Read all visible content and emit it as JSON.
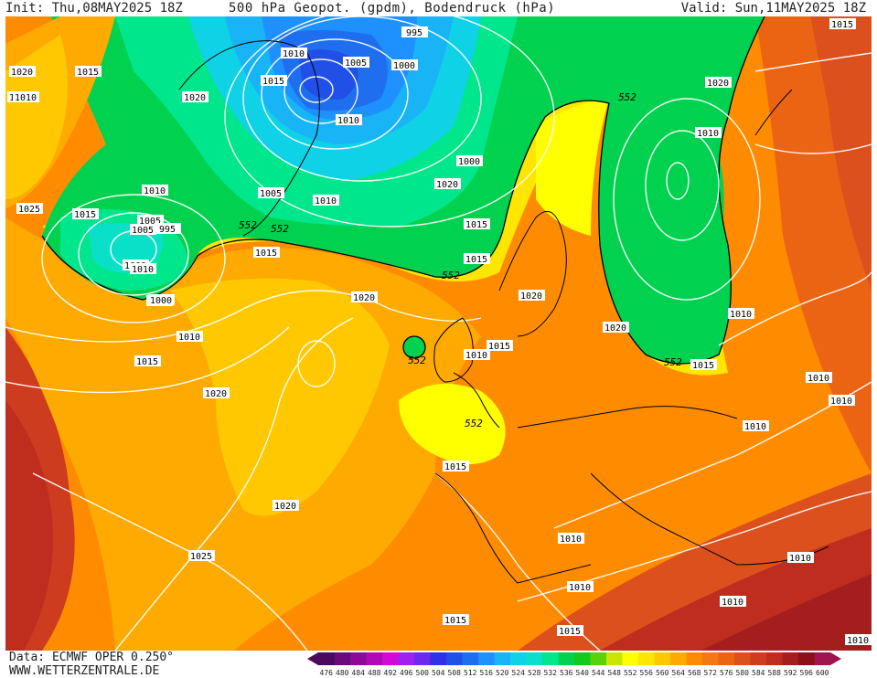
{
  "header": {
    "init": "Init: Thu,08MAY2025 18Z",
    "title": "500 hPa Geopot. (gpdm), Bodendruck (hPa)",
    "valid": "Valid: Sun,11MAY2025 18Z"
  },
  "footer": {
    "data_source": "Data: ECMWF OPER 0.250°",
    "website": "WWW.WETTERZENTRALE.DE"
  },
  "legend": {
    "values": [
      "476",
      "480",
      "484",
      "488",
      "492",
      "496",
      "500",
      "504",
      "508",
      "512",
      "516",
      "520",
      "524",
      "528",
      "532",
      "536",
      "540",
      "544",
      "548",
      "552",
      "556",
      "560",
      "564",
      "568",
      "572",
      "576",
      "580",
      "584",
      "588",
      "592",
      "596",
      "600"
    ],
    "colors": [
      "#4b0a5e",
      "#6a0a7a",
      "#8c0a9a",
      "#b00ab8",
      "#d20ad6",
      "#a020f0",
      "#6a2af0",
      "#3030e8",
      "#2050e8",
      "#1f6ef0",
      "#1e90ff",
      "#19b4f5",
      "#10d2e6",
      "#0ae0c8",
      "#00e68c",
      "#00d250",
      "#14c81e",
      "#5ad20a",
      "#c8e600",
      "#ffff00",
      "#ffe600",
      "#ffc800",
      "#ffaa00",
      "#ff8c00",
      "#f57814",
      "#eb6414",
      "#dc501e",
      "#cd3c1e",
      "#be2d1e",
      "#a51e1e",
      "#8c0f19",
      "#a01450"
    ]
  },
  "isobar_labels": [
    "1020",
    "1015",
    "1025",
    "1020",
    "1010",
    "1015",
    "995",
    "1010",
    "1005",
    "1000",
    "1010",
    "1020",
    "1015",
    "1005",
    "1000",
    "1020",
    "1015",
    "1010",
    "1005",
    "995",
    "1000",
    "1010",
    "1015",
    "1025",
    "1010",
    "1020",
    "1015",
    "1000",
    "1005",
    "1010",
    "1015",
    "1020",
    "1010",
    "1020",
    "1015",
    "1010",
    "1020",
    "1015",
    "1015",
    "1010",
    "1010",
    "1015",
    "1010",
    "1020",
    "1010",
    "1010",
    "1010",
    "1010",
    "1010",
    "1015",
    "1025",
    "1015",
    "1010",
    "1010"
  ],
  "height_labels": [
    "552",
    "552",
    "552",
    "552",
    "552",
    "552",
    "552"
  ]
}
